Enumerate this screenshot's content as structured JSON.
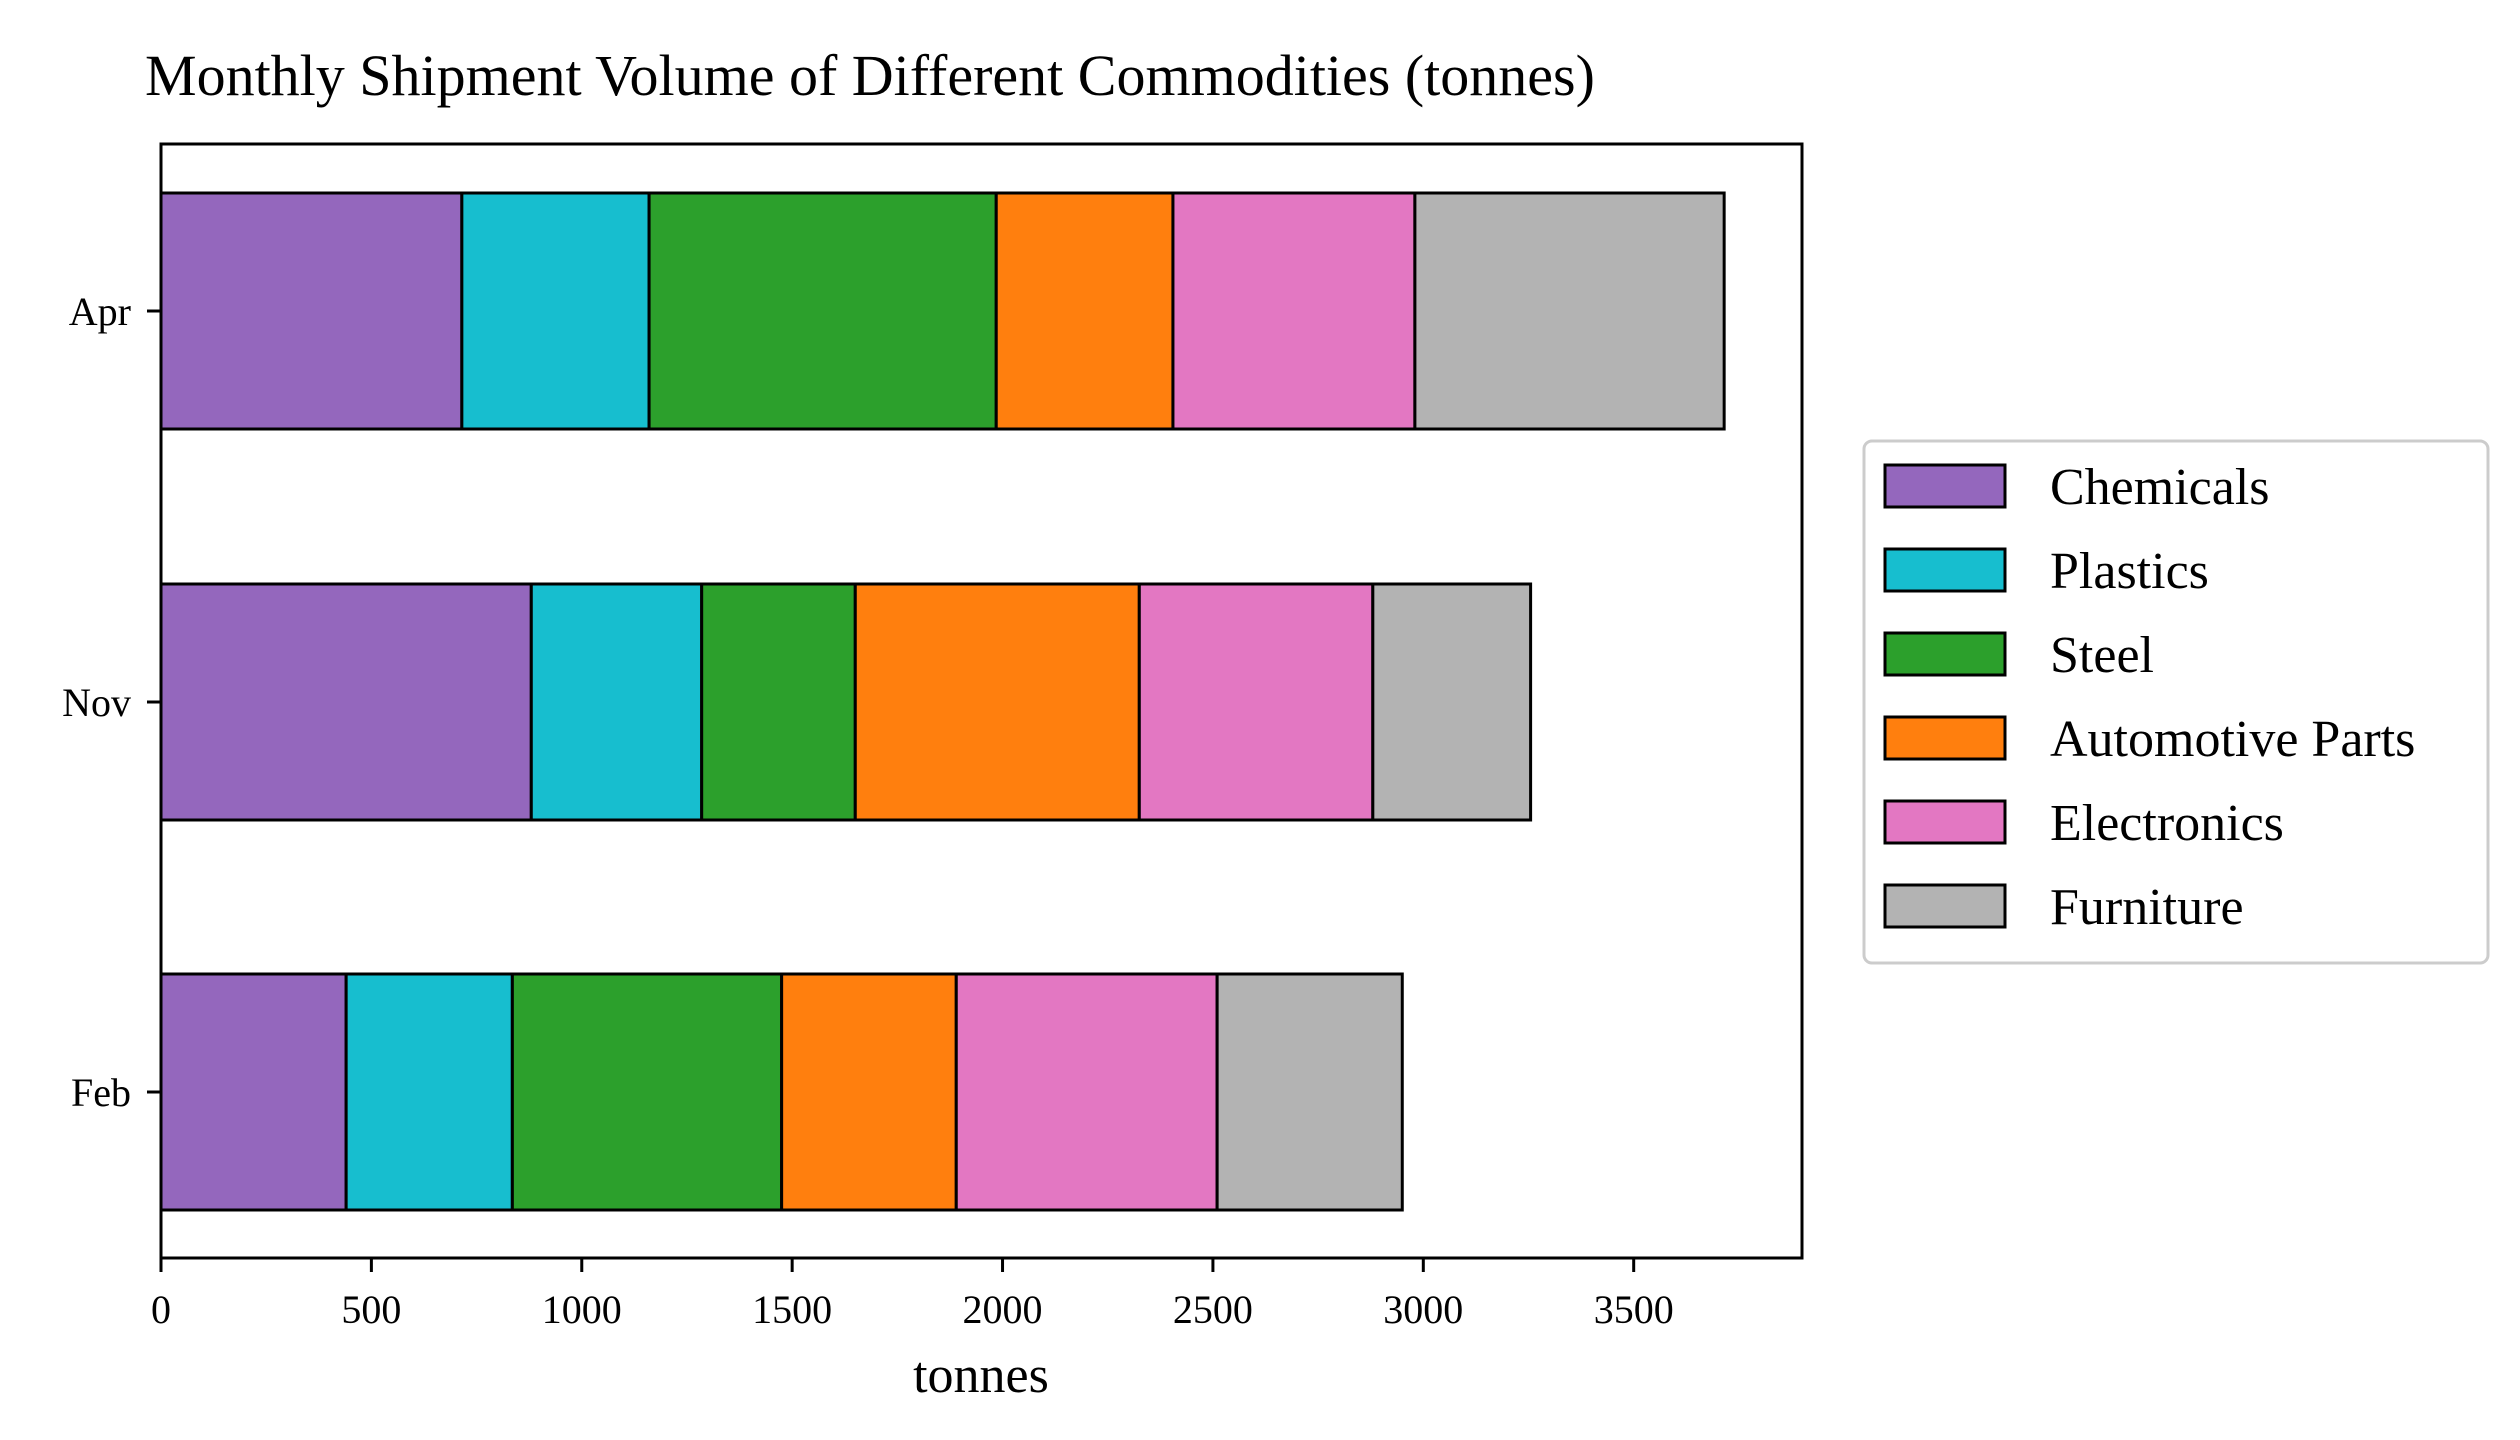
{
  "chart_data": {
    "type": "bar",
    "orientation": "horizontal",
    "stacked": true,
    "title": "Monthly Shipment Volume of Different Commodities (tonnes)",
    "xlabel": "tonnes",
    "ylabel": "",
    "xlim": [
      0,
      3900
    ],
    "xticks": [
      0,
      500,
      1000,
      1500,
      2000,
      2500,
      3000,
      3500
    ],
    "categories": [
      "Apr",
      "Nov",
      "Feb"
    ],
    "series": [
      {
        "name": "Chemicals",
        "color": "#9467bd",
        "values": [
          715,
          880,
          440
        ]
      },
      {
        "name": "Plastics",
        "color": "#17becf",
        "values": [
          445,
          405,
          395
        ]
      },
      {
        "name": "Steel",
        "color": "#2ca02c",
        "values": [
          825,
          365,
          640
        ]
      },
      {
        "name": "Automotive Parts",
        "color": "#ff7f0e",
        "values": [
          420,
          675,
          415
        ]
      },
      {
        "name": "Electronics",
        "color": "#e377c2",
        "values": [
          575,
          555,
          620
        ]
      },
      {
        "name": "Furniture",
        "color": "#b3b3b3",
        "values": [
          735,
          375,
          440
        ]
      }
    ],
    "grid": false,
    "legend_position": "right"
  }
}
